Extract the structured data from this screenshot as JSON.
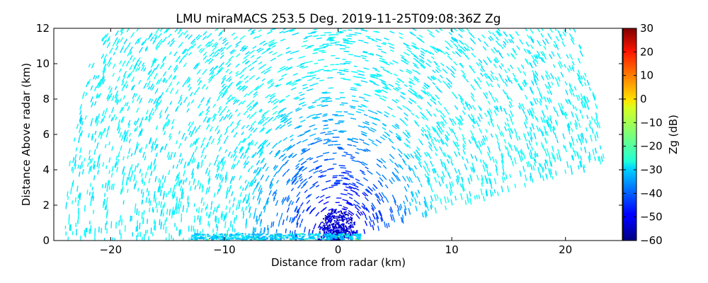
{
  "chart_data": {
    "type": "scatter",
    "subtype": "radar RHI reflectivity scan",
    "title": "LMU miraMACS 253.5 Deg. 2019-11-25T09:08:36Z  Zg",
    "xlabel": "Distance from radar (km)",
    "ylabel": "Distance Above radar  (km)",
    "xlim": [
      -25,
      25
    ],
    "ylim": [
      0,
      12
    ],
    "xticks": [
      "−20",
      "−10",
      "0",
      "10",
      "20"
    ],
    "xtick_values": [
      -20,
      -10,
      0,
      10,
      20
    ],
    "yticks": [
      "0",
      "2",
      "4",
      "6",
      "8",
      "10",
      "12"
    ],
    "ytick_values": [
      0,
      2,
      4,
      6,
      8,
      10,
      12
    ],
    "grid": false,
    "colorbar": {
      "label": "Zg (dB)",
      "range": [
        -60,
        30
      ],
      "ticks": [
        "30",
        "20",
        "10",
        "0",
        "−10",
        "−20",
        "−30",
        "−40",
        "−50",
        "−60"
      ],
      "tick_values": [
        30,
        20,
        10,
        0,
        -10,
        -20,
        -30,
        -40,
        -50,
        -60
      ],
      "colormap": "jet"
    },
    "scan": {
      "radar_position_km": [
        0,
        0
      ],
      "max_range_km": 24,
      "left_elevation_limit_deg": 0,
      "right_elevation_limit_deg": 10.5,
      "field_description": "noise-level reflectivity speckle, about -25 to -30 dB at far range, decreasing to about -55 dB near the radar",
      "surface_echo": {
        "x_range_km": [
          -13,
          2
        ],
        "dBZ_range": [
          -35,
          -10
        ]
      }
    }
  }
}
